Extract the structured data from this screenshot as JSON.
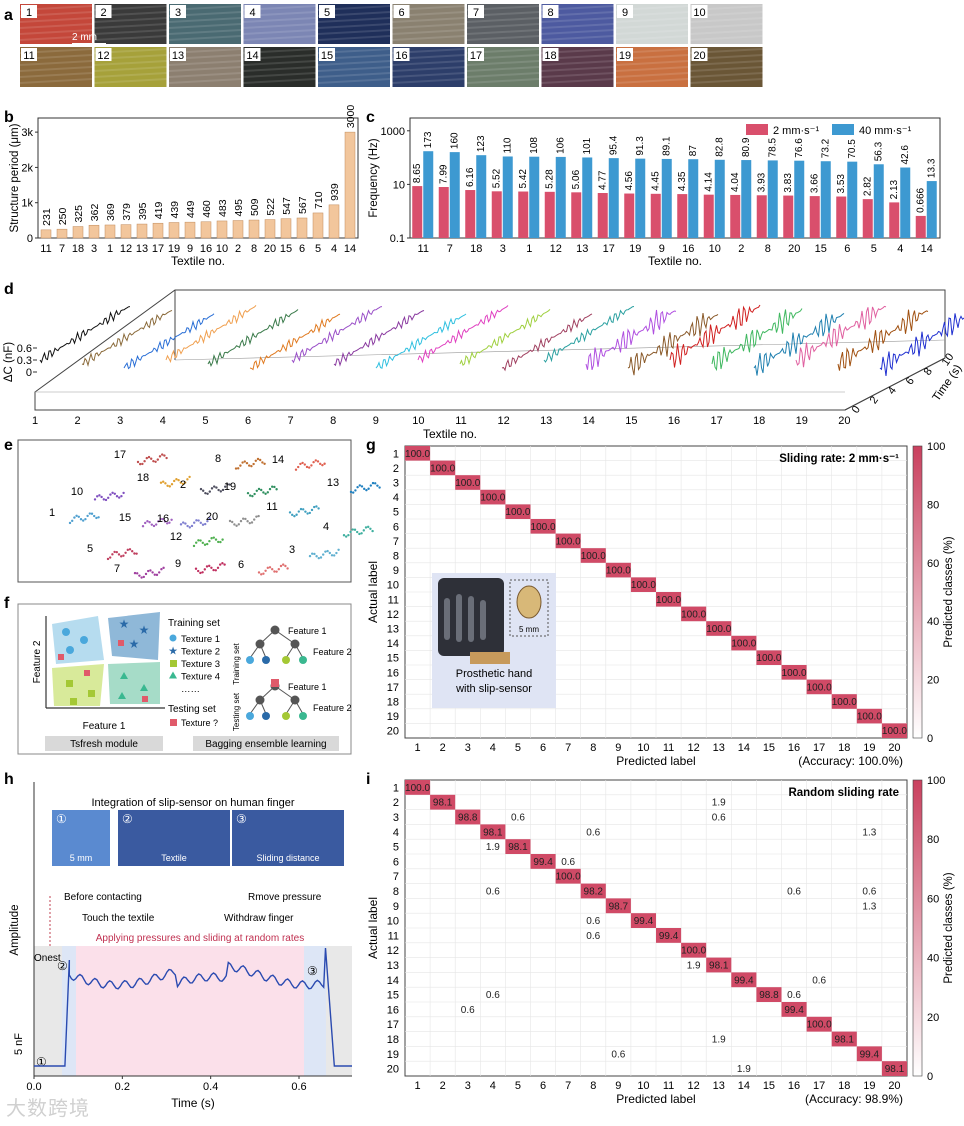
{
  "panel_labels": [
    "a",
    "b",
    "c",
    "d",
    "e",
    "f",
    "g",
    "h",
    "i"
  ],
  "textiles": {
    "tile_numbers": [
      "1",
      "2",
      "3",
      "4",
      "5",
      "6",
      "7",
      "8",
      "9",
      "10",
      "11",
      "12",
      "13",
      "14",
      "15",
      "16",
      "17",
      "18",
      "19",
      "20"
    ],
    "tile_colors": [
      "#c4473a",
      "#3a3a3a",
      "#4a6a72",
      "#7c86b4",
      "#1f2f5a",
      "#8a8170",
      "#5b5f64",
      "#4d5aa0",
      "#d2d8d6",
      "#c8c8c8",
      "#8b6a3c",
      "#a6a13a",
      "#8c7f70",
      "#2a2d2a",
      "#3e5e8a",
      "#2d3e6a",
      "#6c7d6a",
      "#5a3a4a",
      "#c97040",
      "#6a5636"
    ],
    "scale_bar": "2 mm"
  },
  "chart_data": [
    {
      "panel": "b",
      "type": "bar",
      "ylabel": "Structure period (μm)",
      "xlabel": "Textile no.",
      "categories": [
        "11",
        "7",
        "18",
        "3",
        "1",
        "12",
        "13",
        "17",
        "19",
        "9",
        "16",
        "10",
        "2",
        "8",
        "20",
        "15",
        "6",
        "5",
        "4",
        "14"
      ],
      "values": [
        231,
        250,
        325,
        362,
        369,
        379,
        395,
        419,
        439,
        449,
        460,
        483,
        495,
        509,
        522,
        547,
        567,
        710,
        939,
        3000
      ],
      "value_labels": [
        "231",
        "250",
        "325",
        "362",
        "369",
        "379",
        "395",
        "419",
        "439",
        "449",
        "460",
        "483",
        "495",
        "509",
        "522",
        "547",
        "567",
        "710",
        "939",
        "3000"
      ],
      "yticks": [
        "0",
        "1k",
        "2k",
        "3k"
      ],
      "ylim": [
        0,
        3400
      ],
      "color": "#f2c69c"
    },
    {
      "panel": "c",
      "type": "bar",
      "ylabel": "Frequency (Hz)",
      "xlabel": "Textile no.",
      "yscale": "log",
      "ylim": [
        0.1,
        3000
      ],
      "yticks": [
        "0.1",
        "10",
        "1000"
      ],
      "categories": [
        "11",
        "7",
        "18",
        "3",
        "1",
        "12",
        "13",
        "17",
        "19",
        "9",
        "16",
        "10",
        "2",
        "8",
        "20",
        "15",
        "6",
        "5",
        "4",
        "14"
      ],
      "series": [
        {
          "name": "2 mm·s⁻¹",
          "color": "#d94f6c",
          "values": [
            8.65,
            7.99,
            6.16,
            5.52,
            5.42,
            5.28,
            5.06,
            4.77,
            4.56,
            4.45,
            4.35,
            4.14,
            4.04,
            3.93,
            3.83,
            3.66,
            3.53,
            2.82,
            2.13,
            0.666
          ],
          "labels": [
            "8.65",
            "7.99",
            "6.16",
            "5.52",
            "5.42",
            "5.28",
            "5.06",
            "4.77",
            "4.56",
            "4.45",
            "4.35",
            "4.14",
            "4.04",
            "3.93",
            "3.83",
            "3.66",
            "3.53",
            "2.82",
            "2.13",
            "0.666"
          ]
        },
        {
          "name": "40 mm·s⁻¹",
          "color": "#3d99d1",
          "values": [
            173,
            160,
            123,
            110,
            108,
            106,
            101,
            95.4,
            91.3,
            89.1,
            87,
            82.8,
            80.9,
            78.5,
            76.6,
            73.2,
            70.5,
            56.3,
            42.6,
            13.3
          ],
          "labels": [
            "173",
            "160",
            "123",
            "110",
            "108",
            "106",
            "101",
            "95.4",
            "91.3",
            "89.1",
            "87",
            "82.8",
            "80.9",
            "78.5",
            "76.6",
            "73.2",
            "70.5",
            "56.3",
            "42.6",
            "13.3"
          ]
        }
      ]
    },
    {
      "panel": "d",
      "type": "line",
      "ylabel": "ΔC (nF)",
      "xlabel": "Textile no.",
      "zlabel": "Time (s)",
      "yticks": [
        "0",
        "0.3",
        "0.6"
      ],
      "xticks": [
        "1",
        "2",
        "3",
        "4",
        "5",
        "6",
        "7",
        "8",
        "9",
        "10",
        "11",
        "12",
        "13",
        "14",
        "15",
        "16",
        "17",
        "18",
        "19",
        "20"
      ],
      "zticks": [
        "0",
        "2",
        "4",
        "6",
        "8",
        "10"
      ],
      "series_colors": [
        "#111111",
        "#8a6a3a",
        "#2a6fd6",
        "#f0a050",
        "#3a7a4a",
        "#e07a20",
        "#9a50c8",
        "#8a3aa0",
        "#30c0e0",
        "#e040c0",
        "#a0d040",
        "#a04060",
        "#2aa0a0",
        "#b050e0",
        "#8a5a2a",
        "#d02020",
        "#40b860",
        "#2080b0",
        "#e060a0",
        "#a05010",
        "#2030d0"
      ]
    },
    {
      "panel": "e",
      "type": "scatter",
      "cluster_labels": [
        "17",
        "8",
        "14",
        "10",
        "18",
        "2",
        "19",
        "13",
        "1",
        "15",
        "16",
        "20",
        "11",
        "4",
        "5",
        "12",
        "3",
        "7",
        "9",
        "6"
      ]
    },
    {
      "panel": "g",
      "type": "heatmap",
      "title": "Sliding rate: 2 mm·s⁻¹",
      "xlabel": "Predicted label",
      "ylabel": "Actual label",
      "accuracy": "(Accuracy: 100.0%)",
      "colorbar_label": "Predicted classes (%)",
      "colorbar_ticks": [
        "0",
        "20",
        "40",
        "60",
        "80",
        "100"
      ],
      "labels": [
        "1",
        "2",
        "3",
        "4",
        "5",
        "6",
        "7",
        "8",
        "9",
        "10",
        "11",
        "12",
        "13",
        "14",
        "15",
        "16",
        "17",
        "18",
        "19",
        "20"
      ],
      "cells": [
        [
          1,
          1,
          "100.0"
        ],
        [
          2,
          2,
          "100.0"
        ],
        [
          3,
          3,
          "100.0"
        ],
        [
          4,
          4,
          "100.0"
        ],
        [
          5,
          5,
          "100.0"
        ],
        [
          6,
          6,
          "100.0"
        ],
        [
          7,
          7,
          "100.0"
        ],
        [
          8,
          8,
          "100.0"
        ],
        [
          9,
          9,
          "100.0"
        ],
        [
          10,
          10,
          "100.0"
        ],
        [
          11,
          11,
          "100.0"
        ],
        [
          12,
          12,
          "100.0"
        ],
        [
          13,
          13,
          "100.0"
        ],
        [
          14,
          14,
          "100.0"
        ],
        [
          15,
          15,
          "100.0"
        ],
        [
          16,
          16,
          "100.0"
        ],
        [
          17,
          17,
          "100.0"
        ],
        [
          18,
          18,
          "100.0"
        ],
        [
          19,
          19,
          "100.0"
        ],
        [
          20,
          20,
          "100.0"
        ]
      ]
    },
    {
      "panel": "i",
      "type": "heatmap",
      "title": "Random sliding rate",
      "xlabel": "Predicted label",
      "ylabel": "Actual label",
      "accuracy": "(Accuracy: 98.9%)",
      "colorbar_label": "Predicted classes (%)",
      "colorbar_ticks": [
        "0",
        "20",
        "40",
        "60",
        "80",
        "100"
      ],
      "labels": [
        "1",
        "2",
        "3",
        "4",
        "5",
        "6",
        "7",
        "8",
        "9",
        "10",
        "11",
        "12",
        "13",
        "14",
        "15",
        "16",
        "17",
        "18",
        "19",
        "20"
      ],
      "cells": [
        [
          1,
          1,
          "100.0"
        ],
        [
          2,
          2,
          "98.1"
        ],
        [
          2,
          13,
          "1.9"
        ],
        [
          3,
          3,
          "98.8"
        ],
        [
          3,
          5,
          "0.6"
        ],
        [
          3,
          13,
          "0.6"
        ],
        [
          4,
          4,
          "98.1"
        ],
        [
          4,
          8,
          "0.6"
        ],
        [
          4,
          19,
          "1.3"
        ],
        [
          5,
          4,
          "1.9"
        ],
        [
          5,
          5,
          "98.1"
        ],
        [
          6,
          6,
          "99.4"
        ],
        [
          6,
          7,
          "0.6"
        ],
        [
          7,
          7,
          "100.0"
        ],
        [
          8,
          4,
          "0.6"
        ],
        [
          8,
          8,
          "98.2"
        ],
        [
          8,
          16,
          "0.6"
        ],
        [
          8,
          19,
          "0.6"
        ],
        [
          9,
          9,
          "98.7"
        ],
        [
          9,
          19,
          "1.3"
        ],
        [
          10,
          8,
          "0.6"
        ],
        [
          10,
          10,
          "99.4"
        ],
        [
          11,
          8,
          "0.6"
        ],
        [
          11,
          11,
          "99.4"
        ],
        [
          12,
          12,
          "100.0"
        ],
        [
          13,
          12,
          "1.9"
        ],
        [
          13,
          13,
          "98.1"
        ],
        [
          14,
          14,
          "99.4"
        ],
        [
          14,
          17,
          "0.6"
        ],
        [
          15,
          4,
          "0.6"
        ],
        [
          15,
          15,
          "98.8"
        ],
        [
          15,
          16,
          "0.6"
        ],
        [
          16,
          3,
          "0.6"
        ],
        [
          16,
          16,
          "99.4"
        ],
        [
          17,
          17,
          "100.0"
        ],
        [
          18,
          13,
          "1.9"
        ],
        [
          18,
          18,
          "98.1"
        ],
        [
          19,
          9,
          "0.6"
        ],
        [
          19,
          19,
          "99.4"
        ],
        [
          20,
          14,
          "1.9"
        ],
        [
          20,
          20,
          "98.1"
        ]
      ]
    },
    {
      "panel": "h",
      "type": "line",
      "xlabel": "Time (s)",
      "ylabel": "Amplitude",
      "xticks": [
        "0.0",
        "0.2",
        "0.4",
        "0.6"
      ],
      "xlim": [
        0,
        0.72
      ],
      "scale_label": "5 nF"
    }
  ],
  "panel_f": {
    "axis_x": "Feature 1",
    "axis_y": "Feature 2",
    "training_set": "Training set",
    "testing_set": "Testing set",
    "legend": [
      "Texture 1",
      "Texture 2",
      "Texture 3",
      "Texture 4",
      "……"
    ],
    "test_texture": "Texture ?",
    "tree_feature1": "Feature 1",
    "tree_feature2": "Feature 2",
    "module_left": "Tsfresh module",
    "module_right": "Bagging ensemble learning"
  },
  "panel_g_inset": {
    "caption_line1": "Prosthetic hand",
    "caption_line2": "with slip-sensor",
    "scale": "5 mm"
  },
  "panel_h": {
    "title": "Integration of slip-sensor on human finger",
    "photo_circled": [
      "①",
      "②",
      "③"
    ],
    "photo_labels": [
      "5 mm",
      "Textile",
      "Sliding distance"
    ],
    "ann_before": "Before contacting",
    "ann_touch": "Touch the textile",
    "ann_apply": "Applying pressures and sliding at random rates",
    "ann_withdraw": "Withdraw finger",
    "ann_remove": "Rmove pressure",
    "onest": "Onest",
    "circled": [
      "①",
      "②",
      "③"
    ]
  },
  "watermark": "大数跨境"
}
